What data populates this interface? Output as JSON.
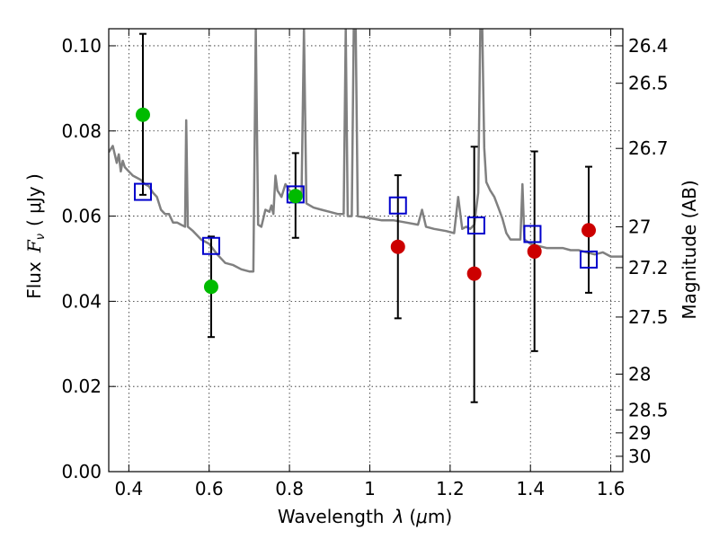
{
  "chart_data": {
    "type": "scatter",
    "x_axis": {
      "label": "Wavelength",
      "symbol": "λ",
      "unit_open": "(",
      "unit_mu": "μ",
      "unit_rest": "m)",
      "range": [
        0.35,
        1.63
      ],
      "ticks": [
        0.4,
        0.6,
        0.8,
        1.0,
        1.2,
        1.4,
        1.6
      ],
      "tick_labels": [
        "0.4",
        "0.6",
        "0.8",
        "1",
        "1.2",
        "1.4",
        "1.6"
      ]
    },
    "y_axis_left": {
      "label": "Flux",
      "symbol": "F",
      "subscript": "ν",
      "unit": "( μJy )",
      "range": [
        0.0,
        0.104
      ],
      "ticks": [
        0.0,
        0.02,
        0.04,
        0.06,
        0.08,
        0.1
      ],
      "tick_labels": [
        "0.00",
        "0.02",
        "0.04",
        "0.06",
        "0.08",
        "0.10"
      ]
    },
    "y_axis_right": {
      "label": "Magnitude (AB)",
      "ticks": [
        {
          "label": "26.4",
          "flux": 0.1
        },
        {
          "label": "26.5",
          "flux": 0.0912
        },
        {
          "label": "26.7",
          "flux": 0.0759
        },
        {
          "label": "27",
          "flux": 0.0575
        },
        {
          "label": "27.2",
          "flux": 0.0479
        },
        {
          "label": "27.5",
          "flux": 0.0363
        },
        {
          "label": "28",
          "flux": 0.0229
        },
        {
          "label": "28.5",
          "flux": 0.0145
        },
        {
          "label": "29",
          "flux": 0.0091
        },
        {
          "label": "30",
          "flux": 0.0036
        }
      ]
    },
    "grid": true,
    "series": [
      {
        "kind": "model_spectrum",
        "color": "#808080",
        "points": [
          [
            0.35,
            0.075
          ],
          [
            0.36,
            0.0765
          ],
          [
            0.37,
            0.0725
          ],
          [
            0.375,
            0.0745
          ],
          [
            0.38,
            0.0705
          ],
          [
            0.385,
            0.073
          ],
          [
            0.39,
            0.0715
          ],
          [
            0.4,
            0.0705
          ],
          [
            0.41,
            0.0695
          ],
          [
            0.42,
            0.069
          ],
          [
            0.43,
            0.0685
          ],
          [
            0.44,
            0.0675
          ],
          [
            0.45,
            0.067
          ],
          [
            0.46,
            0.0655
          ],
          [
            0.47,
            0.0645
          ],
          [
            0.48,
            0.0615
          ],
          [
            0.49,
            0.0605
          ],
          [
            0.5,
            0.0605
          ],
          [
            0.51,
            0.0585
          ],
          [
            0.52,
            0.0585
          ],
          [
            0.53,
            0.058
          ],
          [
            0.54,
            0.0575
          ],
          [
            0.543,
            0.0825
          ],
          [
            0.547,
            0.0575
          ],
          [
            0.56,
            0.0565
          ],
          [
            0.58,
            0.0545
          ],
          [
            0.6,
            0.0535
          ],
          [
            0.62,
            0.051
          ],
          [
            0.64,
            0.049
          ],
          [
            0.66,
            0.0485
          ],
          [
            0.68,
            0.0475
          ],
          [
            0.7,
            0.047
          ],
          [
            0.71,
            0.047
          ],
          [
            0.716,
            0.104
          ],
          [
            0.722,
            0.058
          ],
          [
            0.73,
            0.0575
          ],
          [
            0.74,
            0.0615
          ],
          [
            0.75,
            0.061
          ],
          [
            0.755,
            0.0625
          ],
          [
            0.76,
            0.0605
          ],
          [
            0.765,
            0.0695
          ],
          [
            0.77,
            0.066
          ],
          [
            0.78,
            0.0645
          ],
          [
            0.79,
            0.0675
          ],
          [
            0.8,
            0.066
          ],
          [
            0.81,
            0.0655
          ],
          [
            0.82,
            0.065
          ],
          [
            0.83,
            0.0645
          ],
          [
            0.836,
            0.104
          ],
          [
            0.842,
            0.063
          ],
          [
            0.86,
            0.062
          ],
          [
            0.88,
            0.0615
          ],
          [
            0.9,
            0.061
          ],
          [
            0.92,
            0.0605
          ],
          [
            0.935,
            0.0605
          ],
          [
            0.94,
            0.104
          ],
          [
            0.945,
            0.06
          ],
          [
            0.955,
            0.06
          ],
          [
            0.96,
            0.104
          ],
          [
            0.965,
            0.104
          ],
          [
            0.97,
            0.06
          ],
          [
            1.0,
            0.0595
          ],
          [
            1.03,
            0.059
          ],
          [
            1.06,
            0.059
          ],
          [
            1.09,
            0.0585
          ],
          [
            1.12,
            0.058
          ],
          [
            1.13,
            0.0615
          ],
          [
            1.14,
            0.0575
          ],
          [
            1.16,
            0.057
          ],
          [
            1.19,
            0.0565
          ],
          [
            1.21,
            0.056
          ],
          [
            1.22,
            0.0645
          ],
          [
            1.23,
            0.057
          ],
          [
            1.24,
            0.0575
          ],
          [
            1.25,
            0.057
          ],
          [
            1.26,
            0.058
          ],
          [
            1.27,
            0.0655
          ],
          [
            1.275,
            0.104
          ],
          [
            1.28,
            0.104
          ],
          [
            1.285,
            0.076
          ],
          [
            1.29,
            0.068
          ],
          [
            1.3,
            0.066
          ],
          [
            1.31,
            0.0645
          ],
          [
            1.32,
            0.062
          ],
          [
            1.33,
            0.0595
          ],
          [
            1.34,
            0.056
          ],
          [
            1.35,
            0.0545
          ],
          [
            1.36,
            0.0545
          ],
          [
            1.37,
            0.0545
          ],
          [
            1.375,
            0.0545
          ],
          [
            1.38,
            0.0675
          ],
          [
            1.385,
            0.0545
          ],
          [
            1.4,
            0.0535
          ],
          [
            1.42,
            0.053
          ],
          [
            1.44,
            0.0525
          ],
          [
            1.46,
            0.0525
          ],
          [
            1.48,
            0.0525
          ],
          [
            1.5,
            0.052
          ],
          [
            1.52,
            0.052
          ],
          [
            1.54,
            0.0515
          ],
          [
            1.56,
            0.051
          ],
          [
            1.58,
            0.0515
          ],
          [
            1.6,
            0.0505
          ],
          [
            1.62,
            0.0505
          ],
          [
            1.63,
            0.0505
          ]
        ]
      },
      {
        "kind": "model_photometry",
        "marker": "open-square",
        "color": "#0000cc",
        "points": [
          [
            0.435,
            0.0657
          ],
          [
            0.605,
            0.053
          ],
          [
            0.815,
            0.0651
          ],
          [
            1.07,
            0.0625
          ],
          [
            1.265,
            0.0578
          ],
          [
            1.405,
            0.0558
          ],
          [
            1.545,
            0.0498
          ]
        ]
      },
      {
        "kind": "observed_photometry",
        "marker": "filled-circle",
        "color": "#cc0000",
        "error_color": "#000000",
        "points": [
          {
            "x": 1.07,
            "y": 0.0528,
            "ylo": 0.036,
            "yhi": 0.0696
          },
          {
            "x": 1.26,
            "y": 0.0465,
            "ylo": 0.0163,
            "yhi": 0.0763
          },
          {
            "x": 1.41,
            "y": 0.0517,
            "ylo": 0.0283,
            "yhi": 0.0752
          },
          {
            "x": 1.545,
            "y": 0.0567,
            "ylo": 0.042,
            "yhi": 0.0716
          }
        ]
      },
      {
        "kind": "observed_photometry",
        "marker": "filled-circle",
        "color": "#00bb00",
        "error_color": "#000000",
        "points": [
          {
            "x": 0.435,
            "y": 0.0838,
            "ylo": 0.065,
            "yhi": 0.1028
          },
          {
            "x": 0.605,
            "y": 0.0434,
            "ylo": 0.0316,
            "yhi": 0.0552
          },
          {
            "x": 0.815,
            "y": 0.0647,
            "ylo": 0.0549,
            "yhi": 0.0748
          }
        ]
      }
    ]
  }
}
